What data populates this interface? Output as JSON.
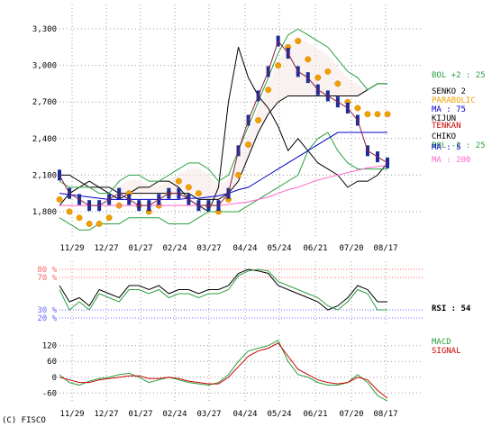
{
  "copyright": "(C) FISCO",
  "chart_data": [
    {
      "type": "line",
      "panel": "price",
      "title": "",
      "x_ticks": [
        "11/29",
        "12/27",
        "01/27",
        "02/24",
        "03/27",
        "04/24",
        "05/24",
        "06/21",
        "07/20",
        "08/17"
      ],
      "y_ticks": [
        1800,
        2100,
        2400,
        2700,
        3000,
        3300
      ],
      "ylim": [
        1600,
        3500
      ],
      "grid": true,
      "legend": [
        {
          "label": "BOL +2 : 25",
          "color": "#2aa040"
        },
        {
          "label": "SENKO 2",
          "color": "#000000"
        },
        {
          "label": "PARABOLIC",
          "color": "#f0a000"
        },
        {
          "label": "MA : 75",
          "color": "#0000cc"
        },
        {
          "label": "KIJUN",
          "color": "#000000"
        },
        {
          "label": "TENKAN",
          "color": "#cc0000"
        },
        {
          "label": "CHIKO",
          "color": "#000000"
        },
        {
          "label": "BOL -2 : 25",
          "color": "#2aa040"
        },
        {
          "label": "MA : 5",
          "color": "#0000cc"
        },
        {
          "label": "MA : 200",
          "color": "#ff66cc"
        }
      ],
      "series": [
        {
          "name": "CHIKO",
          "values": [
            1850,
            1950,
            2000,
            2050,
            2000,
            1950,
            1900,
            1950,
            2000,
            2000,
            2050,
            2050,
            2000,
            1900,
            1850,
            1800,
            2000,
            2700,
            3150,
            2900,
            2750,
            2650,
            2500,
            2300,
            2400,
            2300,
            2200,
            2150,
            2100,
            2000,
            2050,
            2050,
            2100,
            2200
          ]
        },
        {
          "name": "SENKO 2",
          "values": [
            2100,
            2100,
            2050,
            2000,
            2000,
            2000,
            1950,
            1950,
            1950,
            1950,
            1950,
            1950,
            1950,
            1950,
            1900,
            1900,
            1900,
            1950,
            2050,
            2250,
            2450,
            2600,
            2700,
            2750,
            2750,
            2750,
            2750,
            2750,
            2750,
            2750,
            2750,
            2800,
            2850,
            2850
          ]
        },
        {
          "name": "BOL +2 : 25",
          "values": [
            2050,
            2000,
            2000,
            2000,
            1950,
            1950,
            2050,
            2100,
            2100,
            2050,
            2050,
            2100,
            2150,
            2200,
            2200,
            2150,
            2050,
            2100,
            2300,
            2500,
            2700,
            2900,
            3100,
            3250,
            3300,
            3250,
            3200,
            3150,
            3050,
            2950,
            2900,
            2800,
            2850,
            2850
          ]
        },
        {
          "name": "BOL -2 : 25",
          "values": [
            1750,
            1700,
            1650,
            1650,
            1700,
            1700,
            1700,
            1750,
            1750,
            1750,
            1750,
            1700,
            1700,
            1700,
            1750,
            1800,
            1800,
            1800,
            1800,
            1850,
            1900,
            1950,
            2000,
            2050,
            2100,
            2300,
            2400,
            2450,
            2300,
            2200,
            2150,
            2150,
            2150,
            2150
          ]
        },
        {
          "name": "PARABOLIC",
          "values": [
            1900,
            1800,
            1750,
            1700,
            1700,
            1750,
            1850,
            1950,
            1850,
            1800,
            1850,
            1950,
            2050,
            2000,
            1950,
            1850,
            1800,
            1900,
            2100,
            2350,
            2550,
            2800,
            3000,
            3150,
            3200,
            3050,
            2900,
            2950,
            2850,
            2700,
            2650,
            2600,
            2600,
            2600
          ]
        },
        {
          "name": "MA : 75",
          "values": [
            1950,
            1940,
            1930,
            1920,
            1910,
            1900,
            1900,
            1900,
            1900,
            1900,
            1900,
            1900,
            1900,
            1910,
            1910,
            1920,
            1930,
            1950,
            1980,
            2000,
            2050,
            2100,
            2150,
            2200,
            2250,
            2300,
            2350,
            2400,
            2450,
            2450,
            2450,
            2450,
            2450,
            2450
          ]
        },
        {
          "name": "MA : 200",
          "values": [
            1850,
            1850,
            1850,
            1850,
            1850,
            1850,
            1850,
            1850,
            1850,
            1850,
            1850,
            1850,
            1850,
            1850,
            1850,
            1850,
            1850,
            1860,
            1870,
            1880,
            1900,
            1920,
            1950,
            1980,
            2000,
            2030,
            2060,
            2080,
            2100,
            2120,
            2140,
            2160,
            2170,
            2180
          ]
        },
        {
          "name": "PRICE",
          "values": [
            2100,
            1950,
            1900,
            1850,
            1850,
            1900,
            1950,
            1900,
            1850,
            1850,
            1900,
            1950,
            1950,
            1900,
            1850,
            1850,
            1850,
            1950,
            2300,
            2550,
            2750,
            2950,
            3200,
            3100,
            2950,
            2900,
            2800,
            2750,
            2700,
            2650,
            2550,
            2300,
            2250,
            2200
          ]
        }
      ]
    },
    {
      "type": "line",
      "panel": "rsi",
      "y_ticks": [
        20,
        30,
        70,
        80
      ],
      "ylim": [
        10,
        90
      ],
      "reference_lines": [
        80,
        70,
        30,
        20
      ],
      "legend": [
        {
          "label": "RSI : 54",
          "color": "#000000"
        }
      ],
      "series": [
        {
          "name": "RSI",
          "values": [
            60,
            40,
            45,
            35,
            55,
            50,
            45,
            60,
            60,
            55,
            60,
            50,
            55,
            55,
            50,
            55,
            55,
            60,
            75,
            80,
            78,
            75,
            60,
            55,
            50,
            45,
            40,
            30,
            35,
            45,
            60,
            55,
            40,
            40
          ]
        },
        {
          "name": "RSI (green)",
          "values": [
            55,
            30,
            40,
            30,
            50,
            45,
            40,
            55,
            55,
            50,
            55,
            45,
            50,
            50,
            45,
            50,
            50,
            55,
            72,
            78,
            80,
            78,
            65,
            60,
            55,
            50,
            45,
            35,
            30,
            40,
            55,
            50,
            30,
            30
          ]
        }
      ]
    },
    {
      "type": "line",
      "panel": "macd",
      "y_ticks": [
        -60,
        0,
        60,
        120
      ],
      "ylim": [
        -100,
        160
      ],
      "legend": [
        {
          "label": "MACD",
          "color": "#2aa040"
        },
        {
          "label": "SIGNAL",
          "color": "#cc0000"
        }
      ],
      "series": [
        {
          "name": "MACD",
          "values": [
            10,
            -20,
            -30,
            -15,
            -5,
            0,
            10,
            15,
            0,
            -20,
            -10,
            0,
            -10,
            -20,
            -25,
            -30,
            -20,
            10,
            60,
            100,
            110,
            120,
            140,
            60,
            10,
            0,
            -20,
            -30,
            -30,
            -20,
            10,
            -20,
            -70,
            -90
          ]
        },
        {
          "name": "SIGNAL",
          "values": [
            0,
            -10,
            -20,
            -20,
            -10,
            -5,
            0,
            5,
            5,
            -5,
            -5,
            0,
            -5,
            -15,
            -20,
            -25,
            -25,
            0,
            40,
            80,
            100,
            110,
            130,
            80,
            30,
            10,
            -10,
            -20,
            -25,
            -20,
            0,
            -10,
            -50,
            -80
          ]
        }
      ]
    }
  ]
}
